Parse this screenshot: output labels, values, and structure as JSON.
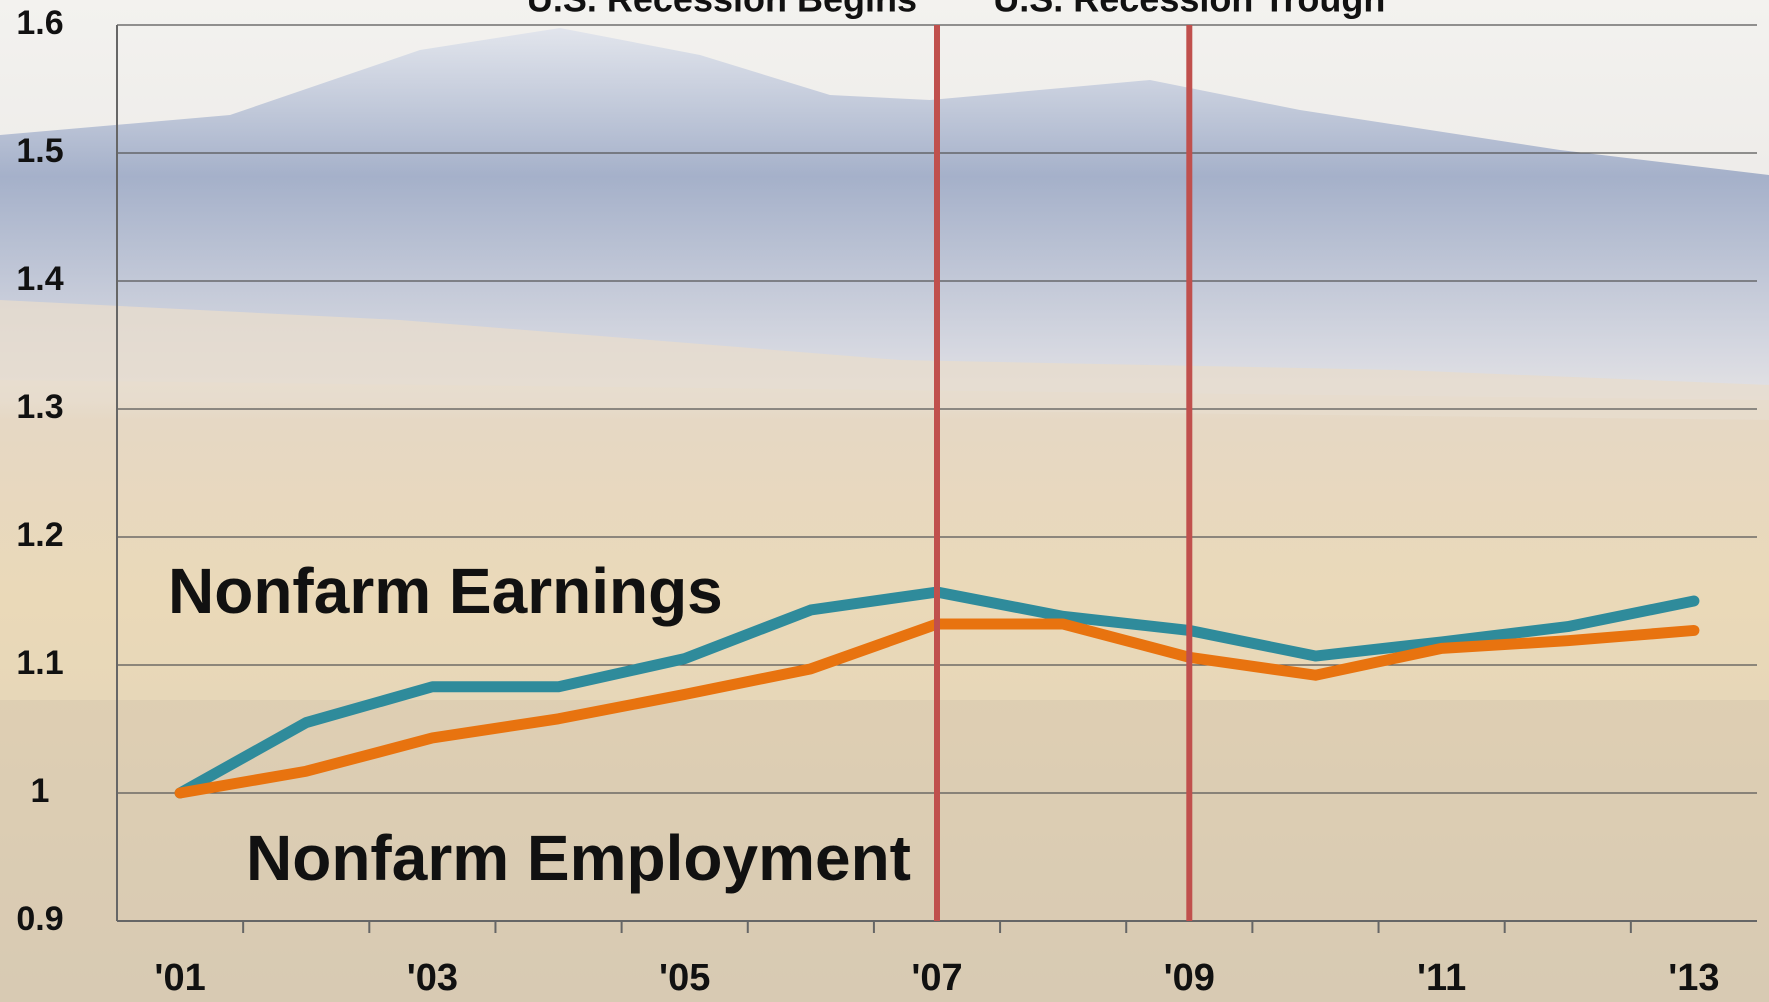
{
  "chart_data": {
    "type": "line",
    "categories": [
      "'01",
      null,
      "'03",
      null,
      "'05",
      null,
      "'07",
      null,
      "'09",
      null,
      "'11",
      null,
      "'13"
    ],
    "series": [
      {
        "name": "Nonfarm Earnings",
        "color": "#2f8b9b",
        "values": [
          1.0,
          1.055,
          1.083,
          1.083,
          1.105,
          1.143,
          1.157,
          1.138,
          1.127,
          1.107,
          1.118,
          1.13,
          1.15
        ]
      },
      {
        "name": "Nonfarm Employment",
        "color": "#e8730f",
        "values": [
          1.0,
          1.017,
          1.043,
          1.058,
          1.077,
          1.097,
          1.132,
          1.132,
          1.106,
          1.092,
          1.113,
          1.119,
          1.127
        ]
      }
    ],
    "ylim": [
      0.9,
      1.6
    ],
    "yticks": [
      0.9,
      1,
      1.1,
      1.2,
      1.3,
      1.4,
      1.5,
      1.6
    ],
    "grid": true,
    "annotations": [
      {
        "text": "U.S. Recession Begins",
        "category": 6,
        "color": "#c0504d"
      },
      {
        "text": "U.S. Recession Trough",
        "category": 8,
        "color": "#c0504d"
      }
    ]
  }
}
